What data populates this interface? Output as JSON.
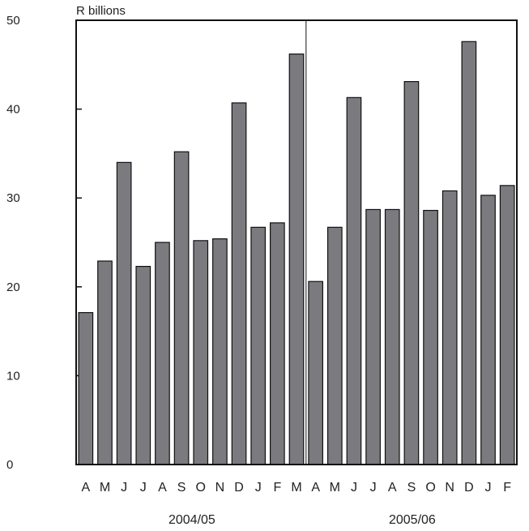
{
  "chart_data": {
    "type": "bar",
    "ylabel": "R billions",
    "ylim": [
      0,
      50
    ],
    "yticks": [
      0,
      10,
      20,
      30,
      40,
      50
    ],
    "grid": false,
    "bar_color": "#7b7b7f",
    "categories": [
      "A",
      "M",
      "J",
      "J",
      "A",
      "S",
      "O",
      "N",
      "D",
      "J",
      "F",
      "M",
      "A",
      "M",
      "J",
      "J",
      "A",
      "S",
      "O",
      "N",
      "D",
      "J",
      "F"
    ],
    "groups": [
      {
        "label": "2004/05",
        "count": 12
      },
      {
        "label": "2005/06",
        "count": 11
      }
    ],
    "values": [
      17.1,
      22.9,
      34.0,
      22.3,
      25.0,
      35.2,
      25.2,
      25.4,
      40.7,
      26.7,
      27.2,
      46.2,
      20.6,
      26.7,
      41.3,
      28.7,
      28.7,
      43.1,
      28.6,
      30.8,
      47.6,
      30.3,
      31.4
    ]
  }
}
